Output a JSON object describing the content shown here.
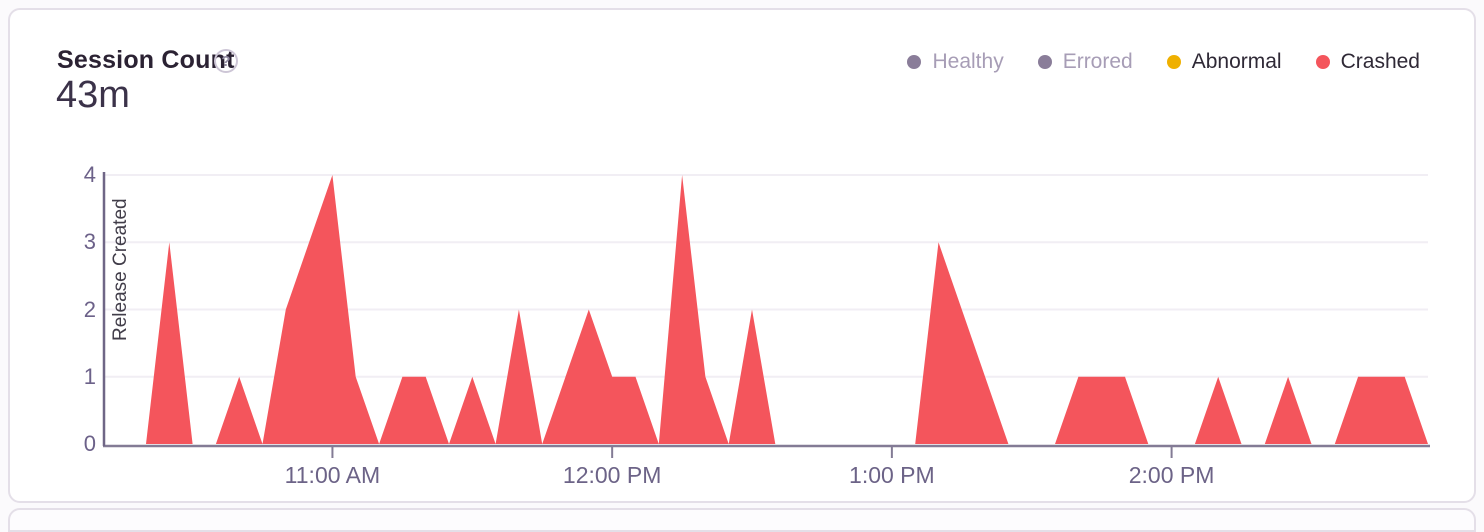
{
  "header": {
    "title": "Session Count",
    "help_icon": "?",
    "value": "43m"
  },
  "legend": {
    "items": [
      {
        "label": "Healthy",
        "dot_color": "#8a7d99",
        "text_color": "#a79db6",
        "selected": false
      },
      {
        "label": "Errored",
        "dot_color": "#8a7d99",
        "text_color": "#a79db6",
        "selected": false
      },
      {
        "label": "Abnormal",
        "dot_color": "#efb000",
        "text_color": "#2f2936",
        "selected": true
      },
      {
        "label": "Crashed",
        "dot_color": "#f4555c",
        "text_color": "#2f2936",
        "selected": true
      }
    ]
  },
  "chart_data": {
    "type": "area",
    "title": "Session Count",
    "ylim": [
      0,
      4
    ],
    "y_ticks": [
      0,
      1,
      2,
      3,
      4
    ],
    "x_ticks": [
      "11:00 AM",
      "12:00 PM",
      "1:00 PM",
      "2:00 PM"
    ],
    "x_domain": [
      "10:11 AM",
      "2:55 PM"
    ],
    "grid": true,
    "legend_position": "top-right",
    "annotation": {
      "label": "Release Created",
      "time": "10:11 AM"
    },
    "series": [
      {
        "name": "Crashed",
        "color": "#f4555c",
        "points": [
          [
            "10:11 AM",
            0
          ],
          [
            "10:20 AM",
            0
          ],
          [
            "10:25 AM",
            3
          ],
          [
            "10:30 AM",
            0
          ],
          [
            "10:35 AM",
            0
          ],
          [
            "10:40 AM",
            1
          ],
          [
            "10:45 AM",
            0
          ],
          [
            "10:50 AM",
            2
          ],
          [
            "10:55 AM",
            3
          ],
          [
            "11:00 AM",
            4
          ],
          [
            "11:05 AM",
            1
          ],
          [
            "11:10 AM",
            0
          ],
          [
            "11:15 AM",
            1
          ],
          [
            "11:20 AM",
            1
          ],
          [
            "11:25 AM",
            0
          ],
          [
            "11:30 AM",
            1
          ],
          [
            "11:35 AM",
            0
          ],
          [
            "11:40 AM",
            2
          ],
          [
            "11:45 AM",
            0
          ],
          [
            "11:50 AM",
            1
          ],
          [
            "11:55 AM",
            2
          ],
          [
            "12:00 PM",
            1
          ],
          [
            "12:05 PM",
            1
          ],
          [
            "12:10 PM",
            0
          ],
          [
            "12:15 PM",
            4
          ],
          [
            "12:20 PM",
            1
          ],
          [
            "12:25 PM",
            0
          ],
          [
            "12:30 PM",
            2
          ],
          [
            "12:35 PM",
            0
          ],
          [
            "12:40 PM",
            0
          ],
          [
            "12:45 PM",
            0
          ],
          [
            "12:50 PM",
            0
          ],
          [
            "12:55 PM",
            0
          ],
          [
            "1:00 PM",
            0
          ],
          [
            "1:05 PM",
            0
          ],
          [
            "1:10 PM",
            3
          ],
          [
            "1:15 PM",
            2
          ],
          [
            "1:20 PM",
            1
          ],
          [
            "1:25 PM",
            0
          ],
          [
            "1:30 PM",
            0
          ],
          [
            "1:35 PM",
            0
          ],
          [
            "1:40 PM",
            1
          ],
          [
            "1:45 PM",
            1
          ],
          [
            "1:50 PM",
            1
          ],
          [
            "1:55 PM",
            0
          ],
          [
            "2:00 PM",
            0
          ],
          [
            "2:05 PM",
            0
          ],
          [
            "2:10 PM",
            1
          ],
          [
            "2:15 PM",
            0
          ],
          [
            "2:20 PM",
            0
          ],
          [
            "2:25 PM",
            1
          ],
          [
            "2:30 PM",
            0
          ],
          [
            "2:35 PM",
            0
          ],
          [
            "2:40 PM",
            1
          ],
          [
            "2:45 PM",
            1
          ],
          [
            "2:50 PM",
            1
          ],
          [
            "2:55 PM",
            0
          ]
        ]
      }
    ],
    "colors": {
      "gridline": "#f1eef4",
      "axis_line": "#837b95",
      "release_line": "#6f6686",
      "axis_text": "#6c6189"
    }
  }
}
